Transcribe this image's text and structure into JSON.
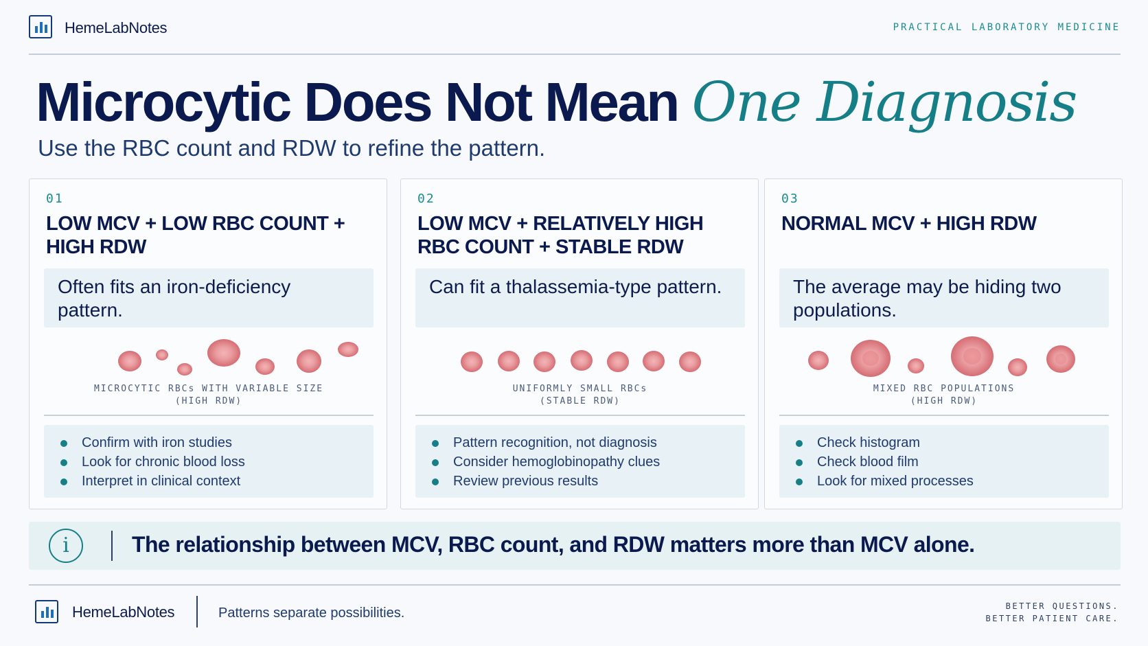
{
  "header": {
    "brand": "HemeLabNotes",
    "tagline": "PRACTICAL LABORATORY MEDICINE"
  },
  "title": {
    "main": "Microcytic Does Not Mean ",
    "emphasis": "One Diagnosis",
    "subtitle": "Use the RBC count and RDW to refine the pattern."
  },
  "cards": [
    {
      "number": "01",
      "heading": "LOW MCV + LOW RBC COUNT + HIGH RDW",
      "summary": "Often fits an iron-deficiency pattern.",
      "caption_line1": "MICROCYTIC RBCs WITH VARIABLE SIZE",
      "caption_line2": "(HIGH RDW)",
      "bullets": [
        "Confirm with iron studies",
        "Look for chronic blood loss",
        "Interpret in clinical context"
      ]
    },
    {
      "number": "02",
      "heading": "LOW MCV + RELATIVELY HIGH RBC COUNT + STABLE RDW",
      "summary": "Can fit a thalassemia-type pattern.",
      "caption_line1": "UNIFORMLY SMALL RBCs",
      "caption_line2": "(STABLE RDW)",
      "bullets": [
        "Pattern recognition, not diagnosis",
        "Consider hemoglobinopathy clues",
        "Review previous results"
      ]
    },
    {
      "number": "03",
      "heading": "NORMAL MCV + HIGH RDW",
      "summary": "The average may be hiding two populations.",
      "caption_line1": "MIXED RBC POPULATIONS",
      "caption_line2": "(HIGH RDW)",
      "bullets": [
        "Check histogram",
        "Check blood film",
        "Look for mixed processes"
      ]
    }
  ],
  "banner": {
    "icon": "info-icon",
    "icon_glyph": "i",
    "message": "The relationship between MCV, RBC count, and RDW matters more than MCV alone."
  },
  "footer": {
    "brand": "HemeLabNotes",
    "note": "Patterns separate possibilities.",
    "tag_line1": "BETTER QUESTIONS.",
    "tag_line2": "BETTER PATIENT CARE."
  },
  "colors": {
    "navy": "#0b1a4e",
    "teal": "#157e87",
    "panel": "#e8f1f5",
    "rbc": "#e88f93"
  }
}
